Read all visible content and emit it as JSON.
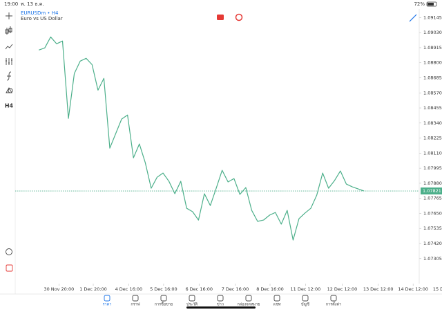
{
  "status_bar": {
    "time": "19:00",
    "date": "พ. 13 ธ.ค.",
    "battery": "72%"
  },
  "symbol": "EURUSDm • H4",
  "description": "Euro vs US Dollar",
  "timeframe_button": "H4",
  "nav": [
    "ราคา",
    "กราฟ",
    "การซื้อขาย",
    "ประวัติ",
    "ข่าว",
    "กล่องจดหมาย",
    "แชท",
    "บัญชี",
    "การตั้งค่า"
  ],
  "chart_data": {
    "type": "line",
    "color": "#4caf8a",
    "categories": [
      null,
      null,
      null,
      null,
      null,
      null,
      null,
      null,
      null,
      null,
      null,
      null,
      null,
      null,
      null,
      null,
      null,
      null,
      null,
      null,
      null,
      null,
      null,
      null,
      null,
      null,
      null,
      null,
      null,
      null,
      null,
      null,
      null,
      null,
      null,
      null,
      null,
      null,
      null,
      null,
      null,
      null,
      null,
      null,
      null,
      null,
      null,
      null,
      null,
      null,
      null,
      null,
      null,
      null,
      null,
      null
    ],
    "values": [
      1.08897,
      1.08913,
      1.08997,
      1.08945,
      1.08966,
      1.08375,
      1.08718,
      1.08813,
      1.08834,
      1.08786,
      1.08591,
      1.08681,
      1.08148,
      1.08259,
      1.0837,
      1.08401,
      1.08074,
      1.0818,
      1.08037,
      1.07842,
      1.07926,
      1.07958,
      1.07895,
      1.078,
      1.07895,
      1.07689,
      1.07663,
      1.07599,
      1.078,
      1.0771,
      1.07842,
      1.07979,
      1.0789,
      1.07916,
      1.07795,
      1.07847,
      1.07673,
      1.07589,
      1.07599,
      1.07636,
      1.07657,
      1.07568,
      1.07673,
      1.07446,
      1.0761,
      1.07652,
      1.07689,
      1.07789,
      1.07958,
      1.07842,
      1.079,
      1.07974,
      1.07874,
      1.07853,
      1.07837,
      1.07821
    ],
    "current_price": 1.07821,
    "xlim": [
      -3.3,
      67.6
    ],
    "xticks": [
      {
        "value": 3.4,
        "label": "30 Nov 20:00"
      },
      {
        "value": 9.2,
        "label": "1 Dec 20:00"
      },
      {
        "value": 15.2,
        "label": "4 Dec 16:00"
      },
      {
        "value": 21.1,
        "label": "5 Dec 16:00"
      },
      {
        "value": 27.1,
        "label": "6 Dec 16:00"
      },
      {
        "value": 33.2,
        "label": "7 Dec 16:00"
      },
      {
        "value": 39.1,
        "label": "8 Dec 16:00"
      },
      {
        "value": 45.1,
        "label": "11 Dec 12:00"
      },
      {
        "value": 51.3,
        "label": "12 Dec 12:00"
      },
      {
        "value": 57.4,
        "label": "13 Dec 12:00"
      },
      {
        "value": 63.3,
        "label": "14 Dec 12:00"
      },
      {
        "value": 69.2,
        "label": "15 Dec 12:00"
      }
    ],
    "ylim": [
      1.0714,
      1.092
    ],
    "yticks": [
      {
        "value": 1.09145,
        "label": "1.09145"
      },
      {
        "value": 1.0903,
        "label": "1.09030"
      },
      {
        "value": 1.08915,
        "label": "1.08915"
      },
      {
        "value": 1.088,
        "label": "1.08800"
      },
      {
        "value": 1.08685,
        "label": "1.08685"
      },
      {
        "value": 1.0857,
        "label": "1.08570"
      },
      {
        "value": 1.08455,
        "label": "1.08455"
      },
      {
        "value": 1.0834,
        "label": "1.08340"
      },
      {
        "value": 1.08225,
        "label": "1.08225"
      },
      {
        "value": 1.0811,
        "label": "1.08110"
      },
      {
        "value": 1.07995,
        "label": "1.07995"
      },
      {
        "value": 1.0788,
        "label": "1.07880"
      },
      {
        "value": 1.07765,
        "label": "1.07765"
      },
      {
        "value": 1.0765,
        "label": "1.07650"
      },
      {
        "value": 1.07535,
        "label": "1.07535"
      },
      {
        "value": 1.0742,
        "label": "1.07420"
      },
      {
        "value": 1.07305,
        "label": "1.07305"
      }
    ]
  }
}
